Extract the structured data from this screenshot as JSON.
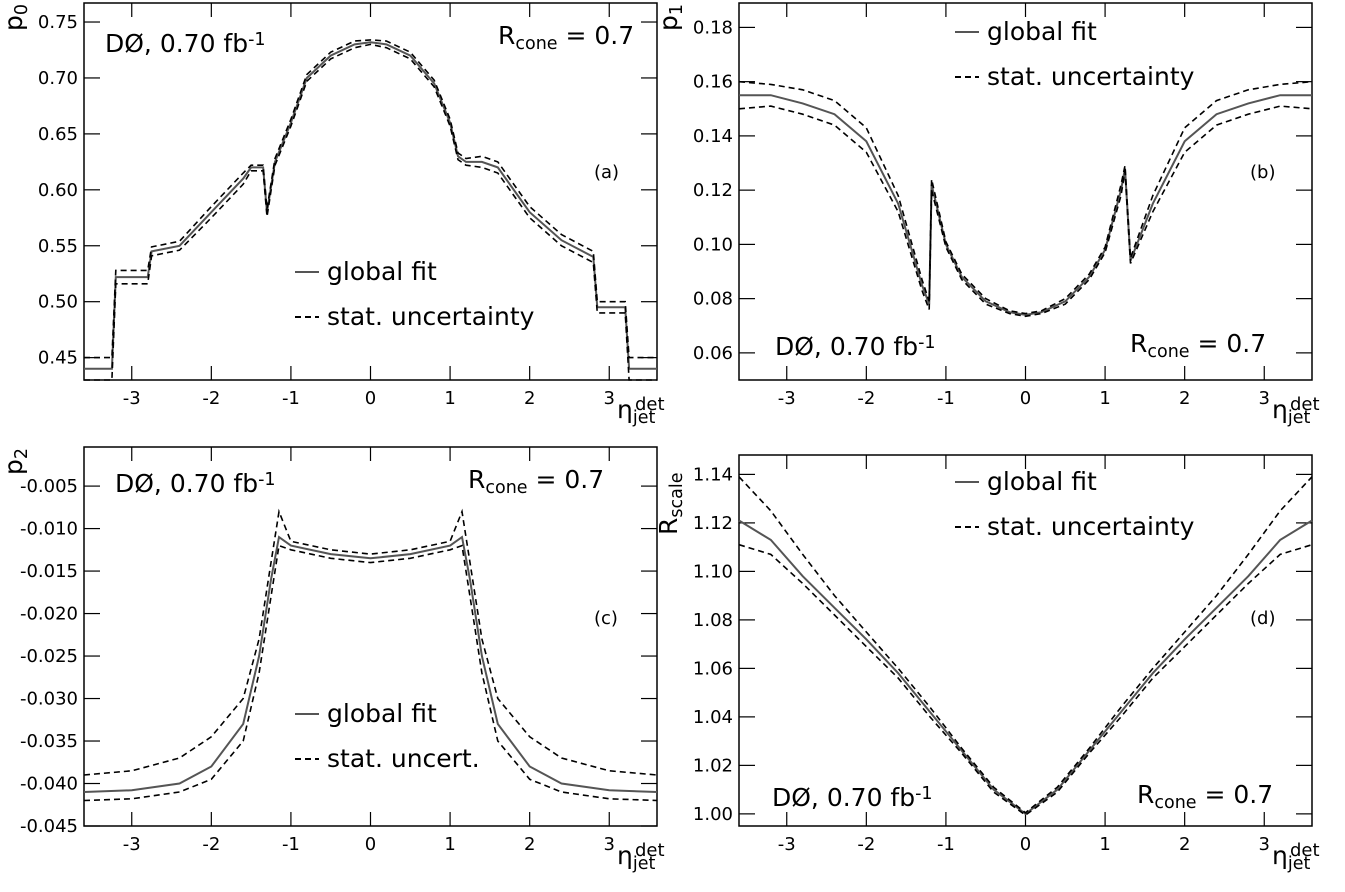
{
  "chart_data": [
    {
      "type": "line",
      "panel": "(a)",
      "ylabel": "p",
      "ylabel_sub": "0",
      "xlabel": "η",
      "xlabel_sup": "det",
      "xlabel_sub": "jet",
      "experiment": "DØ, 0.70 fb",
      "experiment_sup": "-1",
      "rcone": "R",
      "rcone_sub": "cone",
      "rcone_value": " = 0.7",
      "xlim": [
        -3.6,
        3.6
      ],
      "ylim": [
        0.43,
        0.767
      ],
      "xticks": [
        -3,
        -2,
        -1,
        0,
        1,
        2,
        3
      ],
      "yticks": [
        0.45,
        {
          "value": 0.5,
          "label": "0.50"
        },
        0.55,
        {
          "value": 0.6,
          "label": "0.60"
        },
        0.65,
        {
          "value": 0.7,
          "label": "0.70"
        },
        0.75
      ],
      "x": [
        -3.6,
        -3.25,
        -3.2,
        -2.8,
        -2.75,
        -2.4,
        -2.0,
        -1.6,
        -1.5,
        -1.35,
        -1.3,
        -1.2,
        -1.0,
        -0.8,
        -0.5,
        -0.2,
        0,
        0.2,
        0.5,
        0.8,
        1.0,
        1.1,
        1.2,
        1.4,
        1.6,
        2.0,
        2.4,
        2.8,
        2.85,
        3.2,
        3.25,
        3.6
      ],
      "series": [
        {
          "name": "global fit",
          "color": "#555555",
          "values": [
            0.44,
            0.44,
            0.522,
            0.522,
            0.545,
            0.55,
            0.58,
            0.61,
            0.62,
            0.62,
            0.58,
            0.625,
            0.66,
            0.7,
            0.72,
            0.73,
            0.732,
            0.73,
            0.72,
            0.695,
            0.66,
            0.63,
            0.625,
            0.625,
            0.62,
            0.58,
            0.555,
            0.54,
            0.495,
            0.495,
            0.44,
            0.44
          ]
        },
        {
          "name": "stat. uncertainty",
          "color": "#000000",
          "upper": [
            0.45,
            0.45,
            0.528,
            0.528,
            0.549,
            0.554,
            0.585,
            0.615,
            0.622,
            0.622,
            0.583,
            0.628,
            0.663,
            0.703,
            0.723,
            0.733,
            0.734,
            0.733,
            0.723,
            0.698,
            0.663,
            0.633,
            0.628,
            0.63,
            0.625,
            0.585,
            0.56,
            0.545,
            0.5,
            0.5,
            0.45,
            0.45
          ],
          "lower": [
            0.43,
            0.43,
            0.516,
            0.516,
            0.541,
            0.546,
            0.575,
            0.605,
            0.617,
            0.617,
            0.576,
            0.622,
            0.657,
            0.697,
            0.717,
            0.727,
            0.73,
            0.727,
            0.717,
            0.692,
            0.657,
            0.627,
            0.622,
            0.62,
            0.615,
            0.575,
            0.55,
            0.535,
            0.49,
            0.49,
            0.43,
            0.43
          ]
        }
      ]
    },
    {
      "type": "line",
      "panel": "(b)",
      "ylabel": "p",
      "ylabel_sub": "1",
      "xlabel": "η",
      "xlabel_sup": "det",
      "xlabel_sub": "jet",
      "experiment": "DØ, 0.70 fb",
      "experiment_sup": "-1",
      "rcone": "R",
      "rcone_sub": "cone",
      "rcone_value": " = 0.7",
      "xlim": [
        -3.6,
        3.6
      ],
      "ylim": [
        0.05,
        0.189
      ],
      "xticks": [
        -3,
        -2,
        -1,
        0,
        1,
        2,
        3
      ],
      "yticks": [
        0.06,
        0.08,
        {
          "value": 0.1,
          "label": "0.10"
        },
        0.12,
        0.14,
        0.16,
        0.18
      ],
      "x": [
        -3.6,
        -3.2,
        -2.8,
        -2.4,
        -2.0,
        -1.6,
        -1.3,
        -1.21,
        -1.18,
        -1.0,
        -0.8,
        -0.5,
        -0.2,
        0,
        0.2,
        0.5,
        0.8,
        1.0,
        1.2,
        1.25,
        1.32,
        1.6,
        2.0,
        2.4,
        2.8,
        3.2,
        3.6
      ],
      "series": [
        {
          "name": "global fit",
          "color": "#555555",
          "values": [
            0.155,
            0.155,
            0.152,
            0.148,
            0.138,
            0.115,
            0.085,
            0.078,
            0.122,
            0.1,
            0.088,
            0.079,
            0.075,
            0.074,
            0.075,
            0.079,
            0.088,
            0.098,
            0.12,
            0.128,
            0.094,
            0.115,
            0.138,
            0.148,
            0.152,
            0.155,
            0.155
          ]
        },
        {
          "name": "stat. uncertainty",
          "color": "#000000",
          "upper": [
            0.16,
            0.159,
            0.157,
            0.153,
            0.143,
            0.118,
            0.087,
            0.079,
            0.124,
            0.101,
            0.089,
            0.08,
            0.0755,
            0.0745,
            0.0755,
            0.08,
            0.089,
            0.099,
            0.122,
            0.129,
            0.095,
            0.118,
            0.143,
            0.153,
            0.157,
            0.159,
            0.16
          ],
          "lower": [
            0.15,
            0.151,
            0.148,
            0.144,
            0.134,
            0.112,
            0.083,
            0.076,
            0.12,
            0.099,
            0.087,
            0.078,
            0.0745,
            0.0735,
            0.0745,
            0.078,
            0.087,
            0.097,
            0.118,
            0.127,
            0.093,
            0.112,
            0.134,
            0.144,
            0.148,
            0.151,
            0.15
          ]
        }
      ]
    },
    {
      "type": "line",
      "panel": "(c)",
      "ylabel": "p",
      "ylabel_sub": "2",
      "xlabel": "η",
      "xlabel_sup": "det",
      "xlabel_sub": "jet",
      "experiment": "DØ, 0.70 fb",
      "experiment_sup": "-1",
      "rcone": "R",
      "rcone_sub": "cone",
      "rcone_value": " = 0.7",
      "xlim": [
        -3.6,
        3.6
      ],
      "ylim": [
        -0.045,
        -0.0004
      ],
      "xticks": [
        -3,
        -2,
        -1,
        0,
        1,
        2,
        3
      ],
      "yticks": [
        -0.005,
        {
          "value": -0.01,
          "label": "-0.010"
        },
        -0.015,
        {
          "value": -0.02,
          "label": "-0.020"
        },
        -0.025,
        {
          "value": -0.03,
          "label": "-0.030"
        },
        -0.035,
        {
          "value": -0.04,
          "label": "-0.040"
        },
        -0.045
      ],
      "x": [
        -3.6,
        -3.0,
        -2.4,
        -2.0,
        -1.6,
        -1.4,
        -1.25,
        -1.15,
        -1.0,
        -0.5,
        0,
        0.5,
        1.0,
        1.15,
        1.25,
        1.4,
        1.6,
        2.0,
        2.4,
        3.0,
        3.6
      ],
      "series": [
        {
          "name": "global fit",
          "color": "#555555",
          "values": [
            -0.041,
            -0.0408,
            -0.04,
            -0.038,
            -0.033,
            -0.025,
            -0.016,
            -0.011,
            -0.012,
            -0.013,
            -0.0135,
            -0.013,
            -0.012,
            -0.011,
            -0.016,
            -0.025,
            -0.033,
            -0.038,
            -0.04,
            -0.0408,
            -0.041
          ]
        },
        {
          "name": "stat. uncert.",
          "color": "#000000",
          "upper": [
            -0.039,
            -0.0385,
            -0.037,
            -0.0345,
            -0.03,
            -0.023,
            -0.014,
            -0.008,
            -0.0115,
            -0.0125,
            -0.013,
            -0.0125,
            -0.0115,
            -0.008,
            -0.014,
            -0.023,
            -0.03,
            -0.0345,
            -0.037,
            -0.0385,
            -0.039
          ],
          "lower": [
            -0.042,
            -0.0418,
            -0.041,
            -0.0395,
            -0.035,
            -0.027,
            -0.018,
            -0.012,
            -0.0125,
            -0.0135,
            -0.014,
            -0.0135,
            -0.0125,
            -0.012,
            -0.018,
            -0.027,
            -0.035,
            -0.0395,
            -0.041,
            -0.0418,
            -0.042
          ]
        }
      ]
    },
    {
      "type": "line",
      "panel": "(d)",
      "ylabel": "R",
      "ylabel_sub": "scale",
      "xlabel": "η",
      "xlabel_sup": "det",
      "xlabel_sub": "jet",
      "experiment": "DØ, 0.70 fb",
      "experiment_sup": "-1",
      "rcone": "R",
      "rcone_sub": "cone",
      "rcone_value": " = 0.7",
      "xlim": [
        -3.6,
        3.6
      ],
      "ylim": [
        0.995,
        1.148
      ],
      "xticks": [
        -3,
        -2,
        -1,
        0,
        1,
        2,
        3
      ],
      "yticks": [
        {
          "value": 1.0,
          "label": "1.00"
        },
        1.02,
        1.04,
        1.06,
        1.08,
        {
          "value": 1.1,
          "label": "1.10"
        },
        1.12,
        1.14
      ],
      "x": [
        -3.6,
        -3.2,
        -2.8,
        -2.4,
        -2.0,
        -1.6,
        -1.2,
        -0.8,
        -0.4,
        0,
        0.4,
        0.8,
        1.2,
        1.6,
        2.0,
        2.4,
        2.8,
        3.2,
        3.6
      ],
      "series": [
        {
          "name": "global fit",
          "color": "#555555",
          "values": [
            1.121,
            1.113,
            1.098,
            1.085,
            1.072,
            1.058,
            1.042,
            1.026,
            1.01,
            1.0,
            1.01,
            1.026,
            1.042,
            1.058,
            1.072,
            1.085,
            1.098,
            1.113,
            1.121
          ]
        },
        {
          "name": "stat. uncertainty",
          "color": "#000000",
          "upper": [
            1.139,
            1.125,
            1.107,
            1.09,
            1.075,
            1.06,
            1.044,
            1.027,
            1.011,
            1.0005,
            1.011,
            1.027,
            1.044,
            1.06,
            1.075,
            1.09,
            1.107,
            1.125,
            1.139
          ],
          "lower": [
            1.111,
            1.107,
            1.095,
            1.082,
            1.069,
            1.056,
            1.04,
            1.025,
            1.009,
            0.9995,
            1.009,
            1.025,
            1.04,
            1.056,
            1.069,
            1.082,
            1.095,
            1.107,
            1.111
          ]
        }
      ]
    }
  ]
}
